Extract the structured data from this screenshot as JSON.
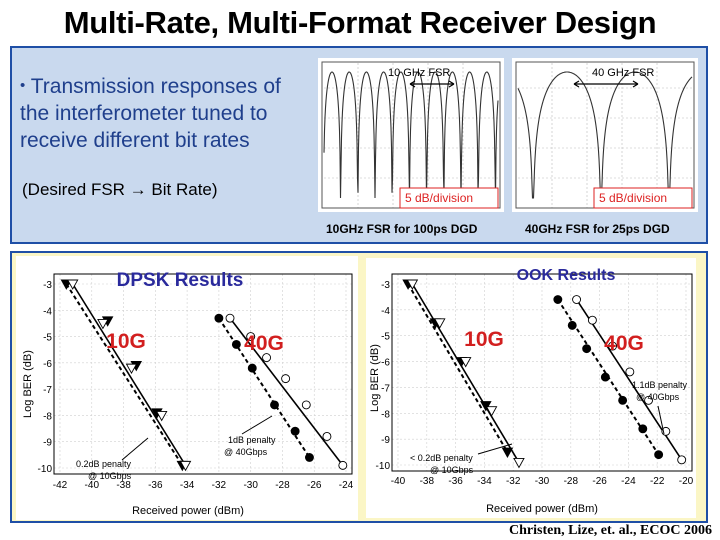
{
  "slide": {
    "title": "Multi-Rate, Multi-Format Receiver Design",
    "bullet_text": "Transmission responses of the interferometer tuned to receive different bit rates",
    "desired_note": "(Desired FSR → Bit Rate)",
    "credit": "Christen, Lize, et. al., ECOC 2006"
  },
  "transmission_plots": [
    {
      "label": "10 GHz FSR",
      "scale": "5 dB/division",
      "caption": "10GHz FSR for 100ps DGD"
    },
    {
      "label": "40 GHz FSR",
      "scale": "5 dB/division",
      "caption": "40GHz FSR for 25ps DGD"
    }
  ],
  "chart_data": [
    {
      "type": "line",
      "title": "DPSK Results",
      "xlabel": "Received power (dBm)",
      "ylabel": "Log BER (dB)",
      "xlim": [
        -42,
        -24
      ],
      "ylim": [
        -10,
        -3
      ],
      "xticks": [
        -42,
        -40,
        -38,
        -36,
        -34,
        -32,
        -30,
        -28,
        -26,
        -24
      ],
      "yticks": [
        -3,
        -4,
        -5,
        -6,
        -7,
        -8,
        -9,
        -10
      ],
      "labels": {
        "10g": "10G",
        "40g": "40G"
      },
      "annotations": {
        "10g": "0.2dB penalty @ 10Gbps",
        "40g": "1dB penalty @ 40Gbps"
      },
      "series": [
        {
          "name": "10G back-to-back",
          "marker": "filled-triangle",
          "x": [
            -41.6,
            -39.0,
            -37.2,
            -35.9,
            -34.3
          ],
          "y": [
            -3.0,
            -4.4,
            -6.1,
            -7.9,
            -9.9
          ]
        },
        {
          "name": "10G received",
          "marker": "open-triangle",
          "x": [
            -41.2,
            -39.3,
            -37.5,
            -35.6,
            -34.1
          ],
          "y": [
            -3.0,
            -4.5,
            -6.2,
            -8.0,
            -9.9
          ]
        },
        {
          "name": "40G back-to-back",
          "marker": "filled-circle",
          "x": [
            -32.0,
            -30.9,
            -29.9,
            -28.5,
            -27.2,
            -26.3
          ],
          "y": [
            -4.3,
            -5.3,
            -6.2,
            -7.6,
            -8.6,
            -9.6
          ]
        },
        {
          "name": "40G received",
          "marker": "open-circle",
          "x": [
            -31.3,
            -30.0,
            -29.0,
            -27.8,
            -26.5,
            -25.2,
            -24.2
          ],
          "y": [
            -4.3,
            -5.0,
            -5.8,
            -6.6,
            -7.6,
            -8.8,
            -9.9
          ]
        }
      ]
    },
    {
      "type": "line",
      "title": "OOK Results",
      "xlabel": "Received power (dBm)",
      "ylabel": "Log BER (dB)",
      "xlim": [
        -40,
        -20
      ],
      "ylim": [
        -10,
        -3
      ],
      "xticks": [
        -40,
        -38,
        -36,
        -34,
        -32,
        -30,
        -28,
        -26,
        -24,
        -22,
        -20
      ],
      "yticks": [
        -3,
        -4,
        -5,
        -6,
        -7,
        -8,
        -9,
        -10
      ],
      "labels": {
        "10g": "10G",
        "40g": "40G"
      },
      "annotations": {
        "10g": "< 0.2dB penalty @ 10Gbps",
        "40g": "1.1dB penalty @ 40Gbps"
      },
      "series": [
        {
          "name": "10G back-to-back",
          "marker": "filled-triangle",
          "x": [
            -39.3,
            -37.4,
            -35.6,
            -33.9,
            -32.4
          ],
          "y": [
            -3.0,
            -4.5,
            -6.0,
            -7.7,
            -9.5
          ]
        },
        {
          "name": "10G received",
          "marker": "open-triangle",
          "x": [
            -39.0,
            -37.1,
            -35.3,
            -33.5,
            -31.6
          ],
          "y": [
            -3.0,
            -4.5,
            -6.0,
            -7.9,
            -9.9
          ]
        },
        {
          "name": "40G back-to-back",
          "marker": "filled-circle",
          "x": [
            -28.9,
            -27.9,
            -26.9,
            -25.6,
            -24.4,
            -23.0,
            -21.9
          ],
          "y": [
            -3.6,
            -4.6,
            -5.5,
            -6.6,
            -7.5,
            -8.6,
            -9.6
          ]
        },
        {
          "name": "40G received",
          "marker": "open-circle",
          "x": [
            -27.6,
            -26.5,
            -25.1,
            -23.9,
            -22.6,
            -21.4,
            -20.3
          ],
          "y": [
            -3.6,
            -4.4,
            -5.4,
            -6.4,
            -7.5,
            -8.7,
            -9.8
          ]
        }
      ]
    }
  ]
}
